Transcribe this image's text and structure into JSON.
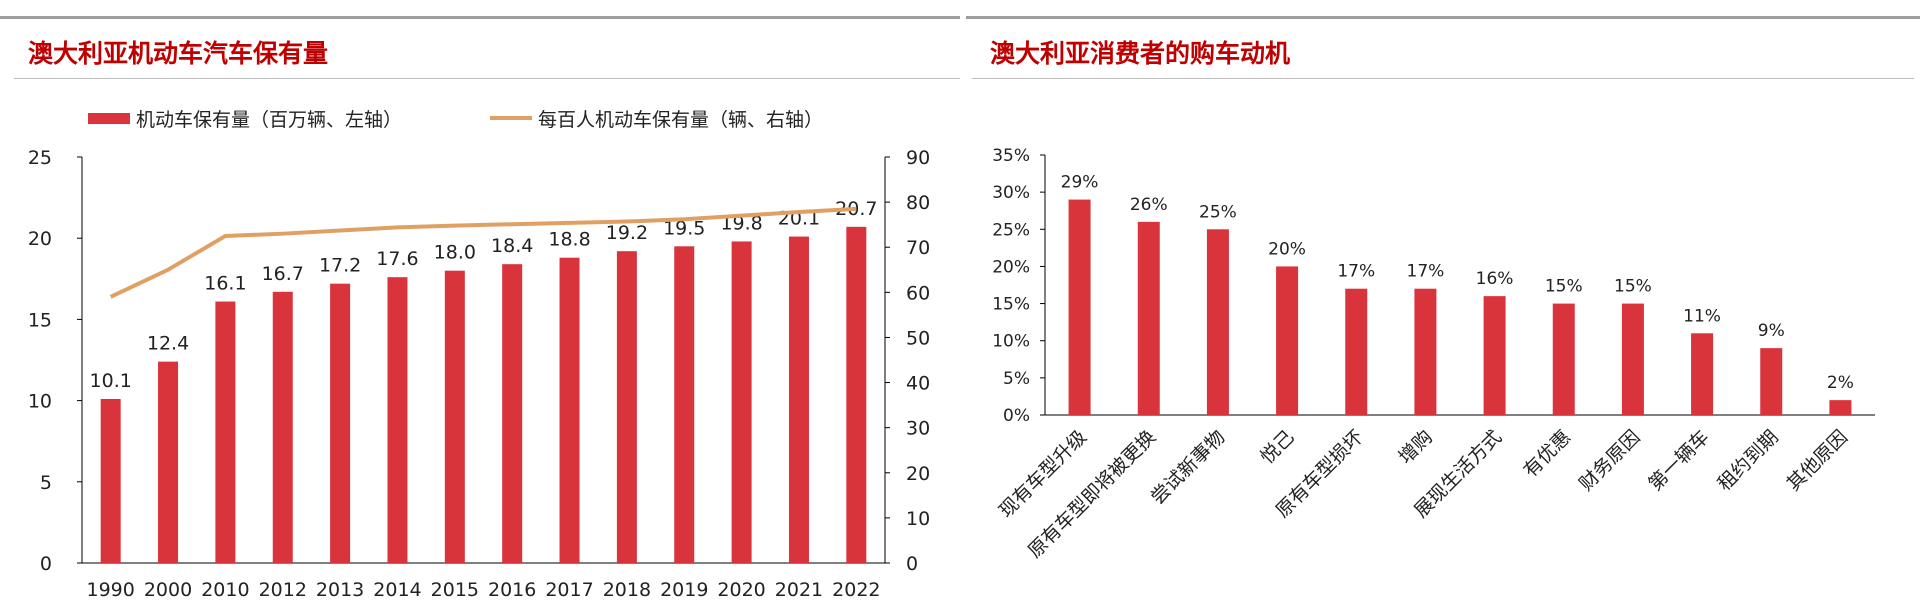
{
  "colors": {
    "bar": "#d9343b",
    "line": "#e0a062",
    "title": "#c00000"
  },
  "left": {
    "title": "澳大利亚机动车汽车保有量",
    "chart_data": {
      "type": "bar",
      "categories": [
        "1990",
        "2000",
        "2010",
        "2012",
        "2013",
        "2014",
        "2015",
        "2016",
        "2017",
        "2018",
        "2019",
        "2020",
        "2021",
        "2022"
      ],
      "series": [
        {
          "name": "机动车保有量（百万辆、左轴）",
          "type": "bar",
          "axis": "left",
          "values": [
            10.1,
            12.4,
            16.1,
            16.7,
            17.2,
            17.6,
            18.0,
            18.4,
            18.8,
            19.2,
            19.5,
            19.8,
            20.1,
            20.7
          ],
          "labels": [
            "10.1",
            "12.4",
            "16.1",
            "16.7",
            "17.2",
            "17.6",
            "18.0",
            "18.4",
            "18.8",
            "19.2",
            "19.5",
            "19.8",
            "20.1",
            "20.7"
          ]
        },
        {
          "name": "每百人机动车保有量（辆、右轴）",
          "type": "line",
          "axis": "right",
          "values": [
            59,
            65,
            72.5,
            73,
            73.7,
            74.4,
            74.8,
            75.1,
            75.4,
            75.7,
            76.2,
            77,
            77.8,
            78.5
          ]
        }
      ],
      "ylim_left": [
        0,
        25
      ],
      "yticks_left": [
        "0",
        "5",
        "10",
        "15",
        "20",
        "25"
      ],
      "ylim_right": [
        0,
        90
      ],
      "yticks_right": [
        "0",
        "10",
        "20",
        "30",
        "40",
        "50",
        "60",
        "70",
        "80",
        "90"
      ],
      "legend_position": "top",
      "grid": false
    }
  },
  "right": {
    "title": "澳大利亚消费者的购车动机",
    "chart_data": {
      "type": "bar",
      "categories": [
        "现有车型升级",
        "原有车型即将被更换",
        "尝试新事物",
        "悦己",
        "原有车型损坏",
        "增购",
        "展现生活方式",
        "有优惠",
        "财务原因",
        "第一辆车",
        "租约到期",
        "其他原因"
      ],
      "values": [
        29,
        26,
        25,
        20,
        17,
        17,
        16,
        15,
        15,
        11,
        9,
        2
      ],
      "labels": [
        "29%",
        "26%",
        "25%",
        "20%",
        "17%",
        "17%",
        "16%",
        "15%",
        "15%",
        "11%",
        "9%",
        "2%"
      ],
      "ylim": [
        0,
        35
      ],
      "yticks": [
        "0%",
        "5%",
        "10%",
        "15%",
        "20%",
        "25%",
        "30%",
        "35%"
      ],
      "grid": false
    }
  }
}
